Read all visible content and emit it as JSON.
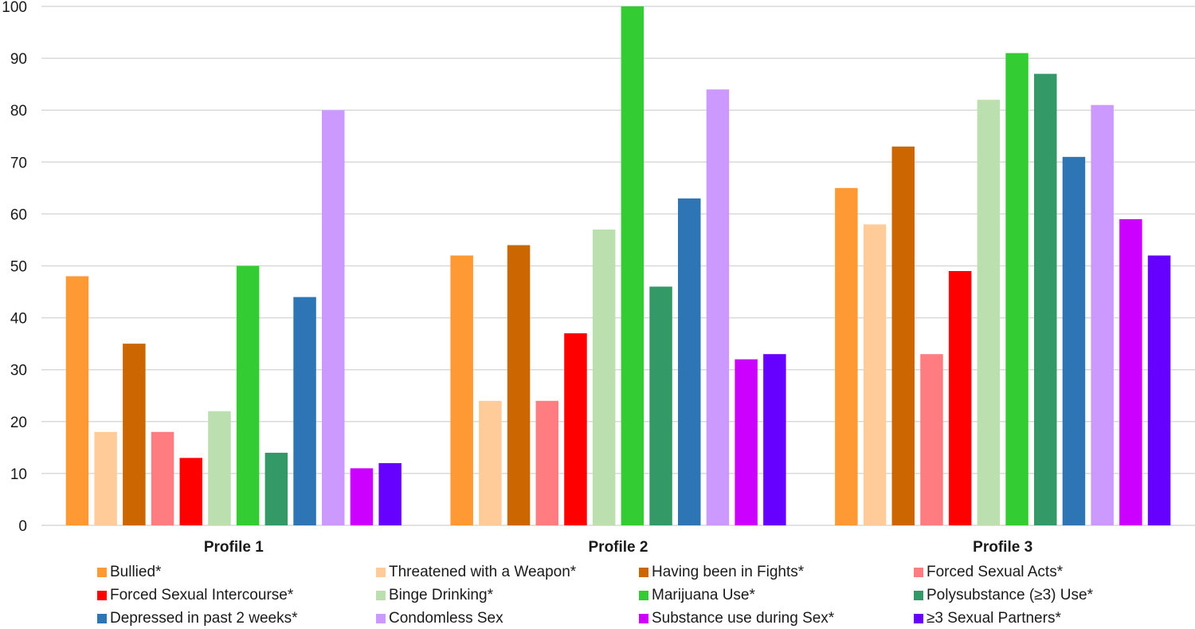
{
  "chart_data": {
    "type": "bar",
    "title": "",
    "xlabel": "",
    "ylabel": "",
    "ylim": [
      0,
      100
    ],
    "yticks": [
      0,
      10,
      20,
      30,
      40,
      50,
      60,
      70,
      80,
      90,
      100
    ],
    "grid": true,
    "legend_position": "bottom",
    "categories": [
      "Profile 1",
      "Profile 2",
      "Profile 3"
    ],
    "series": [
      {
        "name": "Bullied*",
        "color": "#FF9933",
        "values": [
          48,
          52,
          65
        ]
      },
      {
        "name": "Threatened with a Weapon*",
        "color": "#FFCC99",
        "values": [
          18,
          24,
          58
        ]
      },
      {
        "name": "Having been in Fights*",
        "color": "#CC6600",
        "values": [
          35,
          54,
          73
        ]
      },
      {
        "name": "Forced Sexual Acts*",
        "color": "#FF7C80",
        "values": [
          18,
          24,
          33
        ]
      },
      {
        "name": "Forced Sexual Intercourse*",
        "color": "#FF0000",
        "values": [
          13,
          37,
          49
        ]
      },
      {
        "name": "Binge Drinking*",
        "color": "#BBDFAF",
        "values": [
          22,
          57,
          82
        ]
      },
      {
        "name": "Marijuana Use*",
        "color": "#33CC33",
        "values": [
          50,
          100,
          91
        ]
      },
      {
        "name": "Polysubstance (≥3) Use*",
        "color": "#339966",
        "values": [
          14,
          46,
          87
        ]
      },
      {
        "name": "Depressed in past 2 weeks*",
        "color": "#2E75B6",
        "values": [
          44,
          63,
          71
        ]
      },
      {
        "name": "Condomless Sex",
        "color": "#CC99FF",
        "values": [
          80,
          84,
          81
        ]
      },
      {
        "name": "Substance use during Sex*",
        "color": "#CC00FF",
        "values": [
          11,
          32,
          59
        ]
      },
      {
        "name": "≥3 Sexual Partners*",
        "color": "#6600FF",
        "values": [
          12,
          33,
          52
        ]
      }
    ]
  }
}
